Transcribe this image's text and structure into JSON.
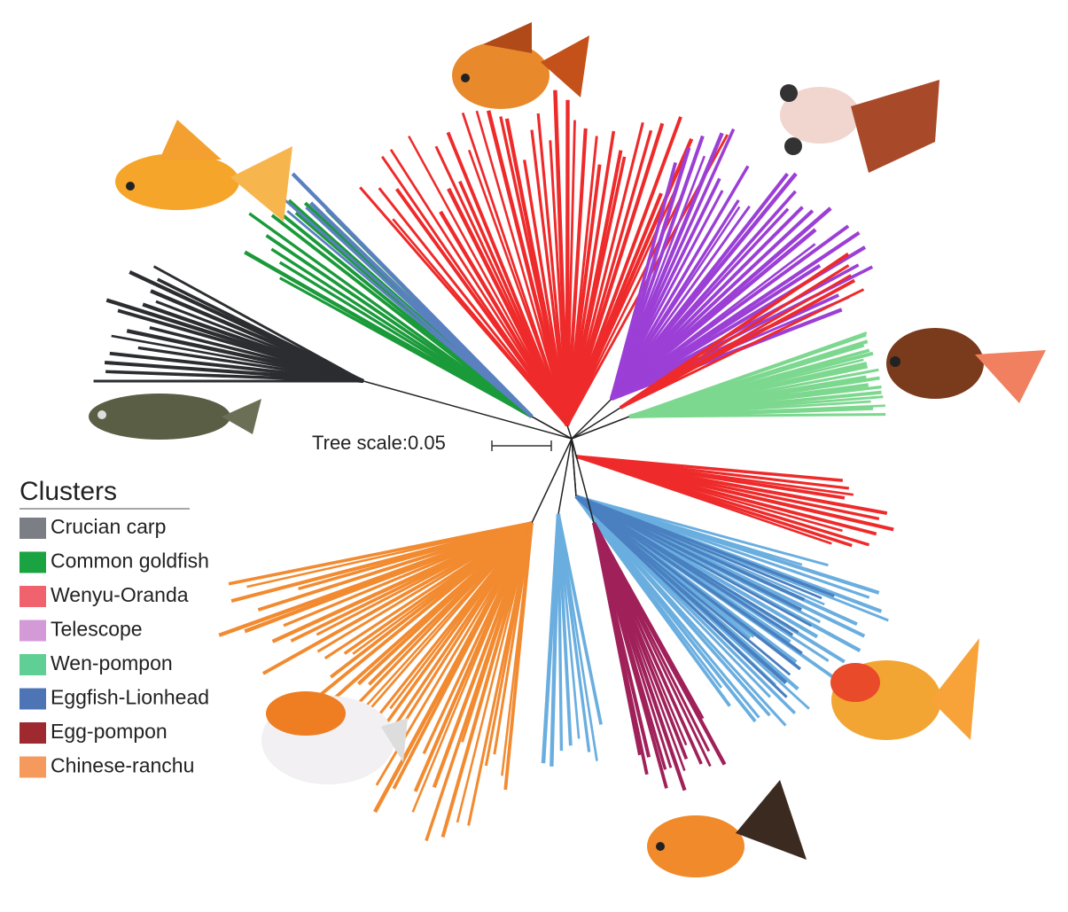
{
  "tree_scale": {
    "label": "Tree scale:0.05"
  },
  "legend": {
    "title": "Clusters",
    "items": [
      {
        "label": "Crucian carp",
        "color": "#7b7f85"
      },
      {
        "label": "Common goldfish",
        "color": "#1aa341"
      },
      {
        "label": "Wenyu-Oranda",
        "color": "#f0636e"
      },
      {
        "label": "Telescope",
        "color": "#d49ad8"
      },
      {
        "label": "Wen-pompon",
        "color": "#5fcf95"
      },
      {
        "label": "Eggfish-Lionhead",
        "color": "#4d74b5"
      },
      {
        "label": "Egg-pompon",
        "color": "#9e2a30"
      },
      {
        "label": "Chinese-ranchu",
        "color": "#f59a5c"
      }
    ]
  }
}
